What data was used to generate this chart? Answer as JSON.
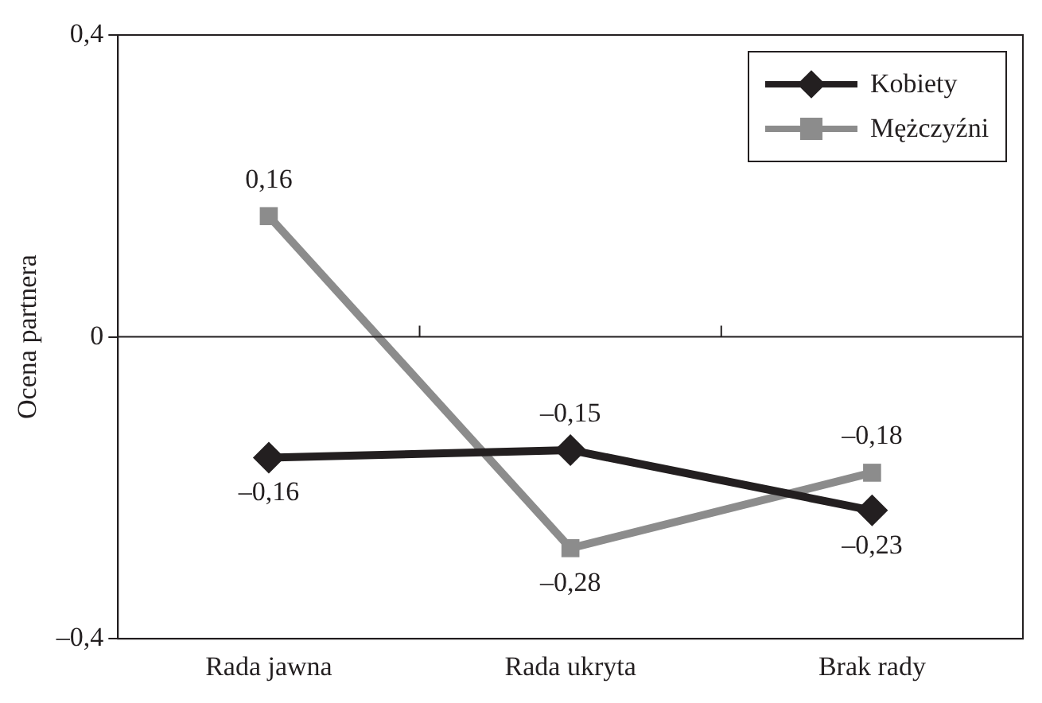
{
  "chart_data": {
    "type": "line",
    "ylabel": "Ocena partnera",
    "categories": [
      "Rada jawna",
      "Rada ukryta",
      "Brak rady"
    ],
    "series": [
      {
        "name": "Kobiety",
        "color": "#231f20",
        "marker": "diamond",
        "values": [
          -0.16,
          -0.15,
          -0.23
        ],
        "value_labels": [
          "–0,16",
          "–0,15",
          "–0,23"
        ]
      },
      {
        "name": "Mężczyźni",
        "color": "#8c8c8c",
        "marker": "square",
        "values": [
          0.16,
          -0.28,
          -0.18
        ],
        "value_labels": [
          "0,16",
          "–0,28",
          "–0,18"
        ]
      }
    ],
    "ylim": [
      -0.4,
      0.4
    ],
    "yticks": [
      {
        "value": -0.4,
        "label": "–0,4"
      },
      0,
      {
        "value": 0.4,
        "label": "0,4"
      }
    ],
    "ref_lines": [
      {
        "axis": "y",
        "value": 0,
        "label": null
      }
    ],
    "grid": false,
    "legend": "top right",
    "line_style": "solid"
  }
}
